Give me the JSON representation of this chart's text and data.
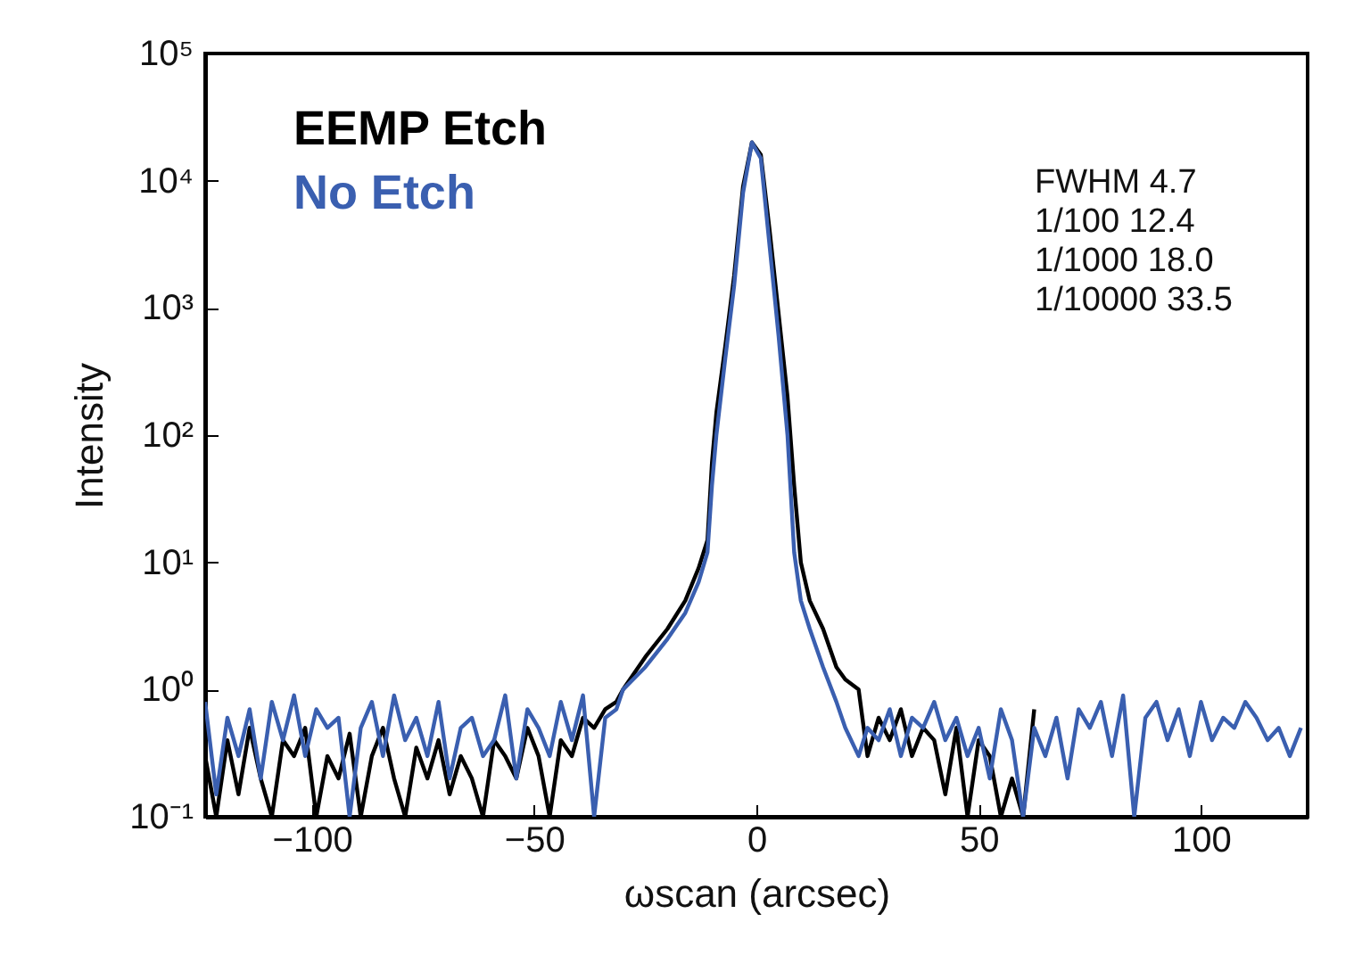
{
  "chart_data": {
    "type": "line",
    "xlabel": "ωscan (arcsec)",
    "ylabel": "Intensity",
    "log": "y",
    "grid": false,
    "legend": "top left",
    "line_style": "solid",
    "marker": "none",
    "xlim": [
      -124,
      124
    ],
    "xticks": [
      -100,
      -50,
      0,
      50,
      100
    ],
    "ylim": [
      0.1,
      100000
    ],
    "yticks": [
      {
        "value": 0.1,
        "label": "10⁻¹"
      },
      {
        "value": 1,
        "label": "10⁰"
      },
      {
        "value": 10,
        "label": "10¹"
      },
      {
        "value": 100,
        "label": "10²"
      },
      {
        "value": 1000,
        "label": "10³"
      },
      {
        "value": 10000,
        "label": "10⁴"
      },
      {
        "value": 100000,
        "label": "10⁵"
      }
    ],
    "annotations": [
      "FWHM 4.7",
      "1/100 12.4",
      "1/1000 18.0",
      "1/10000 33.5"
    ],
    "series": [
      {
        "name": "EEMP Etch",
        "color": "#000000",
        "x": [
          -124,
          -121.5,
          -119,
          -116.5,
          -114,
          -111.5,
          -109,
          -106.5,
          -104,
          -101.5,
          -99,
          -96.5,
          -94,
          -91.5,
          -89,
          -86.5,
          -84,
          -81.5,
          -79,
          -76.5,
          -74,
          -71.5,
          -69,
          -66.5,
          -64,
          -61.5,
          -59,
          -56.5,
          -54,
          -51.5,
          -49,
          -46.5,
          -44,
          -41.5,
          -39,
          -36.5,
          -34,
          -31.5,
          -30,
          -25,
          -20,
          -16,
          -13,
          -11,
          -10,
          -9,
          -7,
          -5,
          -3,
          -1,
          1,
          3,
          5,
          7,
          8.5,
          10,
          12,
          15,
          18,
          20,
          23,
          25,
          27.5,
          30,
          32.5,
          35,
          37.5,
          40,
          42.5,
          45,
          47.5,
          50,
          52.5,
          55,
          57.5,
          60,
          62.5
        ],
        "values": [
          0.3,
          0.1,
          0.4,
          0.15,
          0.5,
          0.2,
          0.1,
          0.4,
          0.3,
          0.5,
          0.1,
          0.3,
          0.2,
          0.45,
          0.1,
          0.3,
          0.5,
          0.2,
          0.1,
          0.35,
          0.2,
          0.4,
          0.15,
          0.3,
          0.2,
          0.1,
          0.4,
          0.3,
          0.2,
          0.5,
          0.3,
          0.1,
          0.4,
          0.3,
          0.6,
          0.5,
          0.7,
          0.8,
          1.0,
          1.8,
          3,
          5,
          9,
          15,
          60,
          150,
          500,
          1800,
          9000,
          20000,
          16000,
          4000,
          900,
          200,
          40,
          10,
          5,
          3,
          1.5,
          1.2,
          1.0,
          0.3,
          0.6,
          0.4,
          0.7,
          0.3,
          0.5,
          0.4,
          0.15,
          0.5,
          0.1,
          0.4,
          0.3,
          0.1,
          0.2,
          0.1,
          0.7
        ]
      },
      {
        "name": "No Etch",
        "color": "#3a5fb0",
        "x": [
          -124,
          -121.5,
          -119,
          -116.5,
          -114,
          -111.5,
          -109,
          -106.5,
          -104,
          -101.5,
          -99,
          -96.5,
          -94,
          -91.5,
          -89,
          -86.5,
          -84,
          -81.5,
          -79,
          -76.5,
          -74,
          -71.5,
          -69,
          -66.5,
          -64,
          -61.5,
          -59,
          -56.5,
          -54,
          -51.5,
          -49,
          -46.5,
          -44,
          -41.5,
          -39,
          -36.5,
          -34,
          -31.5,
          -30,
          -25,
          -20,
          -16,
          -13,
          -11,
          -10,
          -9,
          -7,
          -5,
          -3,
          -1,
          1,
          3,
          5,
          7,
          8.5,
          10,
          12,
          15,
          18,
          20,
          23,
          25,
          27.5,
          30,
          32.5,
          35,
          37.5,
          40,
          42.5,
          45,
          47.5,
          50,
          52.5,
          55,
          57.5,
          60,
          62.5,
          65,
          67.5,
          70,
          72.5,
          75,
          77.5,
          80,
          82.5,
          85,
          87.5,
          90,
          92.5,
          95,
          97.5,
          100,
          102.5,
          105,
          107.5,
          110,
          112.5,
          115,
          117.5,
          120,
          122.5
        ],
        "values": [
          0.8,
          0.15,
          0.6,
          0.3,
          0.7,
          0.2,
          0.8,
          0.4,
          0.9,
          0.3,
          0.7,
          0.5,
          0.6,
          0.1,
          0.5,
          0.8,
          0.3,
          0.9,
          0.4,
          0.6,
          0.3,
          0.8,
          0.2,
          0.5,
          0.6,
          0.3,
          0.4,
          0.9,
          0.2,
          0.7,
          0.5,
          0.3,
          0.8,
          0.4,
          0.9,
          0.1,
          0.6,
          0.7,
          1.0,
          1.5,
          2.5,
          4,
          7,
          12,
          40,
          100,
          400,
          1500,
          8000,
          20000,
          15000,
          3000,
          600,
          100,
          12,
          5,
          3,
          1.5,
          0.8,
          0.5,
          0.3,
          0.5,
          0.4,
          0.7,
          0.3,
          0.6,
          0.5,
          0.8,
          0.4,
          0.6,
          0.3,
          0.5,
          0.2,
          0.7,
          0.4,
          0.1,
          0.5,
          0.3,
          0.6,
          0.2,
          0.7,
          0.5,
          0.8,
          0.3,
          0.9,
          0.1,
          0.6,
          0.8,
          0.4,
          0.7,
          0.3,
          0.8,
          0.4,
          0.6,
          0.5,
          0.8,
          0.6,
          0.4,
          0.5,
          0.3,
          0.5
        ]
      }
    ]
  }
}
